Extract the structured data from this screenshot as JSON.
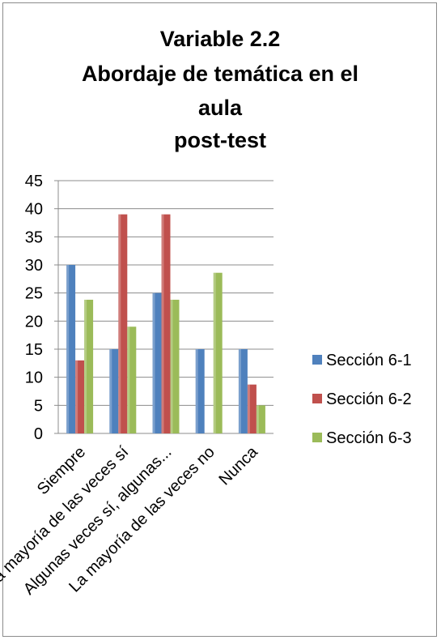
{
  "chart_data": {
    "type": "bar",
    "title_lines": [
      "Variable 2.2",
      "Abordaje de temática en el",
      "aula",
      "post-test"
    ],
    "categories": [
      "Siempre",
      "La mayoría de las veces sí",
      "Algunas veces sí, algunas...",
      "La mayoría de las veces no",
      "Nunca"
    ],
    "series": [
      {
        "name": "Sección 6-1",
        "color": "#4f81bd",
        "values": [
          30,
          15,
          25,
          15,
          15
        ]
      },
      {
        "name": "Sección 6-2",
        "color": "#c0504d",
        "values": [
          13,
          39,
          39,
          0,
          8.7
        ]
      },
      {
        "name": "Sección 6-3",
        "color": "#9bbb59",
        "values": [
          23.8,
          19,
          23.8,
          28.6,
          5
        ]
      }
    ],
    "ylim": [
      0,
      45
    ],
    "ytick_step": 5,
    "grid": true,
    "legend_position": "right"
  }
}
